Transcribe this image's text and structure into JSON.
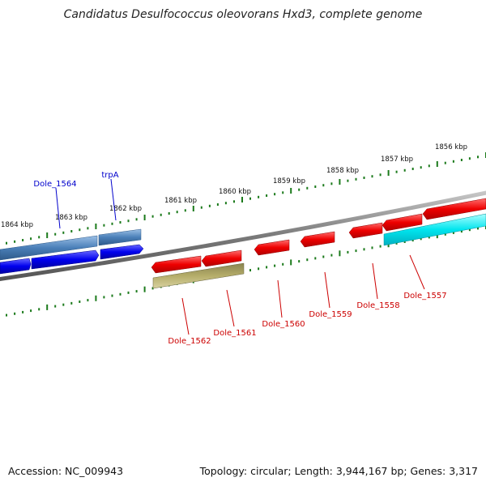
{
  "title": "Candidatus Desulfococcus oleovorans Hxd3, complete genome",
  "footer": {
    "accession": "Accession: NC_009943",
    "summary": "Topology: circular; Length: 3,944,167 bp; Genes: 3,317"
  },
  "colors": {
    "backbone": "#808080",
    "forward_tick": "#1b7a1b",
    "label_blue": "#0000cc",
    "label_red": "#cc0000",
    "gene_blue": "#0000ee",
    "gene_steelblue": "#4a7fb8",
    "gene_red": "#ee0000",
    "gene_cyan": "#00e5ee",
    "gene_olive": "#b5ad6a"
  },
  "scale": {
    "unit": "kbp",
    "ticks": [
      "1856 kbp",
      "1857 kbp",
      "1858 kbp",
      "1859 kbp",
      "1860 kbp",
      "1861 kbp",
      "1862 kbp",
      "1863 kbp",
      "1864 kbp"
    ]
  },
  "gene_labels": [
    {
      "text": "Dole_1564",
      "color": "blue"
    },
    {
      "text": "trpA",
      "color": "blue"
    },
    {
      "text": "Dole_1562",
      "color": "red"
    },
    {
      "text": "Dole_1561",
      "color": "red"
    },
    {
      "text": "Dole_1560",
      "color": "red"
    },
    {
      "text": "Dole_1559",
      "color": "red"
    },
    {
      "text": "Dole_1558",
      "color": "red"
    },
    {
      "text": "Dole_1557",
      "color": "red"
    }
  ]
}
